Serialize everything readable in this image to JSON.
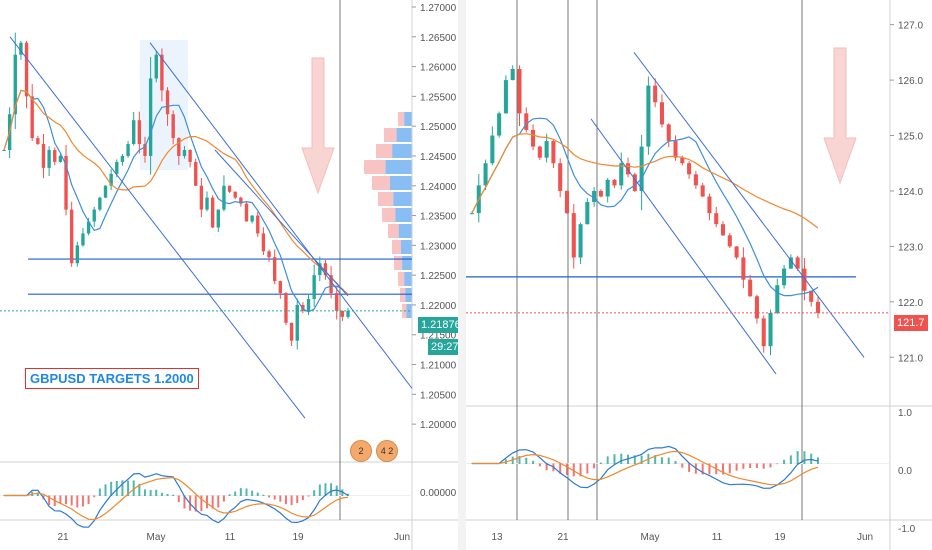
{
  "left": {
    "annotation": "GBPUSD TARGETS 1.2000",
    "price_label": "1.21876",
    "countdown_label": "29:27",
    "events_badges": [
      "2",
      "4 2"
    ],
    "accent": "#26a69a",
    "down_color": "#ef5350"
  },
  "right": {
    "price_label": "121.7",
    "price_color": "#ef5350"
  },
  "chart_data": [
    {
      "type": "candlestick",
      "symbol": "GBPUSD",
      "y_ticks": [
        "1.27000",
        "1.26500",
        "1.26000",
        "1.25500",
        "1.25000",
        "1.24500",
        "1.24000",
        "1.23500",
        "1.23000",
        "1.22500",
        "1.22000",
        "1.21500",
        "1.21000",
        "1.20500",
        "1.20000"
      ],
      "ylim": [
        1.197,
        1.2705
      ],
      "x_ticks": [
        "21",
        "May",
        "11",
        "19",
        "Jun"
      ],
      "close_series": [
        1.246,
        1.252,
        1.262,
        1.264,
        1.255,
        1.248,
        1.247,
        1.243,
        1.246,
        1.244,
        1.245,
        1.236,
        1.227,
        1.23,
        1.232,
        1.234,
        1.236,
        1.238,
        1.24,
        1.242,
        1.244,
        1.245,
        1.247,
        1.251,
        1.247,
        1.245,
        1.258,
        1.262,
        1.256,
        1.252,
        1.248,
        1.245,
        1.246,
        1.244,
        1.24,
        1.236,
        1.238,
        1.233,
        1.236,
        1.24,
        1.239,
        1.238,
        1.237,
        1.234,
        1.235,
        1.232,
        1.229,
        1.228,
        1.224,
        1.222,
        1.217,
        1.214,
        1.22,
        1.219,
        1.221,
        1.225,
        1.227,
        1.225,
        1.222,
        1.219,
        1.218,
        1.219
      ],
      "horizontal_levels": [
        1.2277,
        1.2218
      ],
      "indicator": {
        "name": "MACD",
        "y_ticks": [
          "0.00000"
        ]
      },
      "volume_profile": true
    },
    {
      "type": "candlestick",
      "y_ticks": [
        "127.0",
        "126.0",
        "125.0",
        "124.0",
        "123.0",
        "122.0",
        "121.0"
      ],
      "ylim": [
        120.5,
        127.3
      ],
      "x_ticks": [
        "13",
        "21",
        "May",
        "11",
        "19",
        "Jun"
      ],
      "close_series": [
        123.6,
        124.1,
        124.5,
        125.0,
        125.4,
        126.0,
        126.2,
        125.4,
        125.1,
        124.8,
        124.6,
        124.9,
        124.5,
        124.0,
        123.6,
        122.8,
        123.4,
        123.8,
        124.0,
        123.9,
        124.2,
        124.1,
        124.5,
        124.3,
        124.0,
        124.8,
        125.9,
        125.6,
        125.2,
        124.9,
        124.6,
        124.5,
        124.3,
        124.1,
        123.9,
        123.6,
        123.4,
        123.2,
        123.0,
        122.8,
        122.4,
        122.1,
        121.7,
        121.2,
        121.8,
        122.3,
        122.6,
        122.8,
        122.6,
        122.2,
        122.0,
        121.8
      ],
      "horizontal_levels": [
        122.45
      ],
      "indicator": {
        "name": "MACD",
        "y_ticks": [
          "1.0",
          "0.0",
          "-1.0"
        ]
      }
    }
  ]
}
